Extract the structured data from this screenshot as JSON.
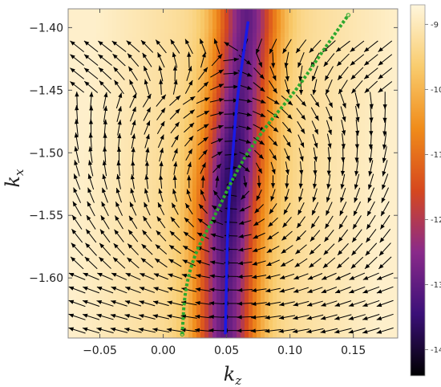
{
  "chart_data": {
    "type": "vector-field-heatmap",
    "xlabel": "k",
    "xlabel_sub": "z",
    "ylabel": "k",
    "ylabel_sub": "x",
    "xlim": [
      -0.075,
      0.185
    ],
    "ylim": [
      -1.648,
      -1.385
    ],
    "x_ticks": [
      {
        "value": -0.05,
        "label": "−0.05"
      },
      {
        "value": 0.0,
        "label": "0.00"
      },
      {
        "value": 0.05,
        "label": "0.05"
      },
      {
        "value": 0.1,
        "label": "0.10"
      },
      {
        "value": 0.15,
        "label": "0.15"
      }
    ],
    "y_ticks": [
      {
        "value": -1.4,
        "label": "−1.40"
      },
      {
        "value": -1.45,
        "label": "−1.45"
      },
      {
        "value": -1.5,
        "label": "−1.50"
      },
      {
        "value": -1.55,
        "label": "−1.55"
      },
      {
        "value": -1.6,
        "label": "−1.60"
      }
    ],
    "colorbar": {
      "range": [
        -14.4,
        -8.7
      ],
      "ticks": [
        {
          "value": -9,
          "label": "-9"
        },
        {
          "value": -10,
          "label": "-10"
        },
        {
          "value": -11,
          "label": "-11"
        },
        {
          "value": -12,
          "label": "-12"
        },
        {
          "value": -13,
          "label": "-13"
        },
        {
          "value": -14,
          "label": "-14"
        }
      ],
      "colors": [
        "#000000",
        "#3b1078",
        "#8a2a8a",
        "#d6481e",
        "#f08c1a",
        "#f9cc6e",
        "#fff6dc"
      ]
    },
    "heatmap": {
      "ridge_x": [
        [
          -1.645,
          0.049
        ],
        [
          -1.55,
          0.051
        ],
        [
          -1.5,
          0.056
        ],
        [
          -1.45,
          0.061
        ],
        [
          -1.4,
          0.066
        ]
      ],
      "ridge_width": 0.023,
      "vortex_center": [
        0.055,
        -1.525
      ],
      "min_value": -13.6,
      "background_value": -9.6
    },
    "vector_field": {
      "grid_x_range": [
        -0.068,
        0.175
      ],
      "grid_y_range": [
        -1.642,
        -1.415
      ],
      "grid_cols": 23,
      "grid_rows": 22,
      "vortex_center": [
        0.055,
        -1.525
      ],
      "arrow_color": "#000000"
    },
    "series": [
      {
        "style": "solid",
        "color": "#1a1ae6",
        "points": [
          [
            0.049,
            -1.645
          ],
          [
            0.05,
            -1.6
          ],
          [
            0.051,
            -1.55
          ],
          [
            0.055,
            -1.5
          ],
          [
            0.058,
            -1.46
          ],
          [
            0.062,
            -1.43
          ],
          [
            0.067,
            -1.395
          ]
        ]
      },
      {
        "style": "dotted",
        "color": "#2ea82e",
        "points": [
          [
            0.015,
            -1.645
          ],
          [
            0.017,
            -1.61
          ],
          [
            0.025,
            -1.58
          ],
          [
            0.041,
            -1.55
          ],
          [
            0.06,
            -1.51
          ],
          [
            0.08,
            -1.48
          ],
          [
            0.105,
            -1.45
          ],
          [
            0.125,
            -1.42
          ],
          [
            0.146,
            -1.39
          ]
        ]
      }
    ]
  }
}
